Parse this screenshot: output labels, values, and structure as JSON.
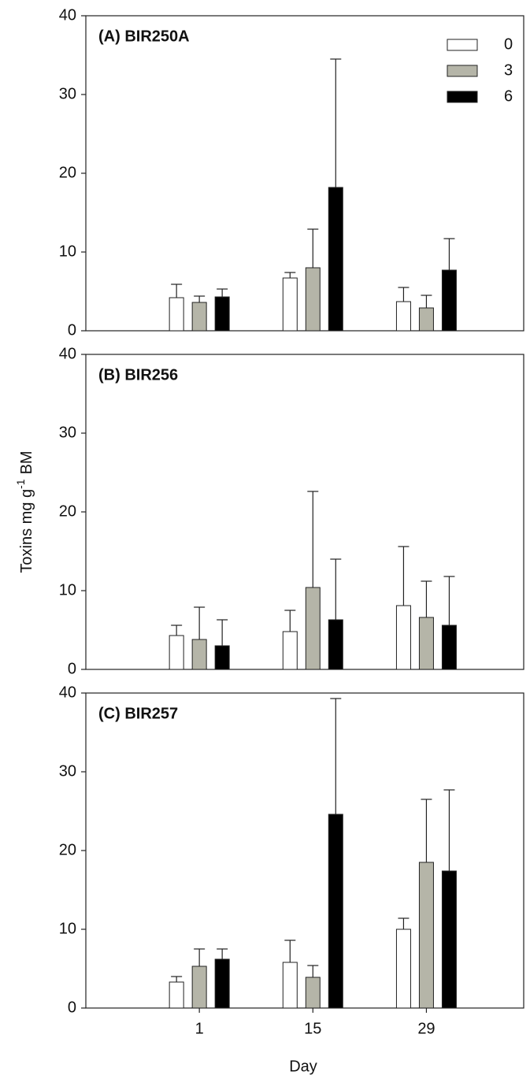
{
  "chart_data": [
    {
      "type": "bar",
      "title": "(A) BIR250A",
      "x": [
        1,
        15,
        29
      ],
      "xlim": [
        -13,
        41
      ],
      "ylim": [
        0,
        40
      ],
      "yticks": [
        0,
        10,
        20,
        30,
        40
      ],
      "legend": "upper right",
      "series": [
        {
          "name": "0",
          "color": "#ffffff",
          "values": [
            4.2,
            6.7,
            3.7
          ],
          "errors": [
            1.7,
            0.7,
            1.8
          ]
        },
        {
          "name": "3",
          "color": "#b5b5a8",
          "values": [
            3.6,
            8.0,
            2.9
          ],
          "errors": [
            0.8,
            4.9,
            1.6
          ]
        },
        {
          "name": "6",
          "color": "#000000",
          "values": [
            4.3,
            18.2,
            7.7
          ],
          "errors": [
            1.0,
            16.3,
            4.0
          ]
        }
      ]
    },
    {
      "type": "bar",
      "title": "(B) BIR256",
      "x": [
        1,
        15,
        29
      ],
      "xlim": [
        -13,
        41
      ],
      "ylim": [
        0,
        40
      ],
      "yticks": [
        0,
        10,
        20,
        30,
        40
      ],
      "ylabel": {
        "main": "Toxins mg g",
        "sup": "-1",
        "unit": "BM"
      },
      "series": [
        {
          "color": "#ffffff",
          "values": [
            4.3,
            4.8,
            8.1
          ],
          "errors": [
            1.3,
            2.7,
            7.5
          ]
        },
        {
          "color": "#b5b5a8",
          "values": [
            3.8,
            10.4,
            6.6
          ],
          "errors": [
            4.1,
            12.2,
            4.6
          ]
        },
        {
          "color": "#000000",
          "values": [
            3.0,
            6.3,
            5.6
          ],
          "errors": [
            3.3,
            7.7,
            6.2
          ]
        }
      ]
    },
    {
      "type": "bar",
      "title": "(C) BIR257",
      "x": [
        1,
        15,
        29
      ],
      "xlim": [
        -13,
        41
      ],
      "xticks": [
        1,
        15,
        29
      ],
      "xlabel": "Day",
      "ylim": [
        0,
        40
      ],
      "yticks": [
        0,
        10,
        20,
        30,
        40
      ],
      "series": [
        {
          "color": "#ffffff",
          "values": [
            3.3,
            5.8,
            10.0
          ],
          "errors": [
            0.7,
            2.8,
            1.4
          ]
        },
        {
          "color": "#b5b5a8",
          "values": [
            5.3,
            3.9,
            18.5
          ],
          "errors": [
            2.2,
            1.5,
            8.0
          ]
        },
        {
          "color": "#000000",
          "values": [
            6.2,
            24.6,
            17.4
          ],
          "errors": [
            1.3,
            14.7,
            10.3
          ]
        }
      ]
    }
  ]
}
